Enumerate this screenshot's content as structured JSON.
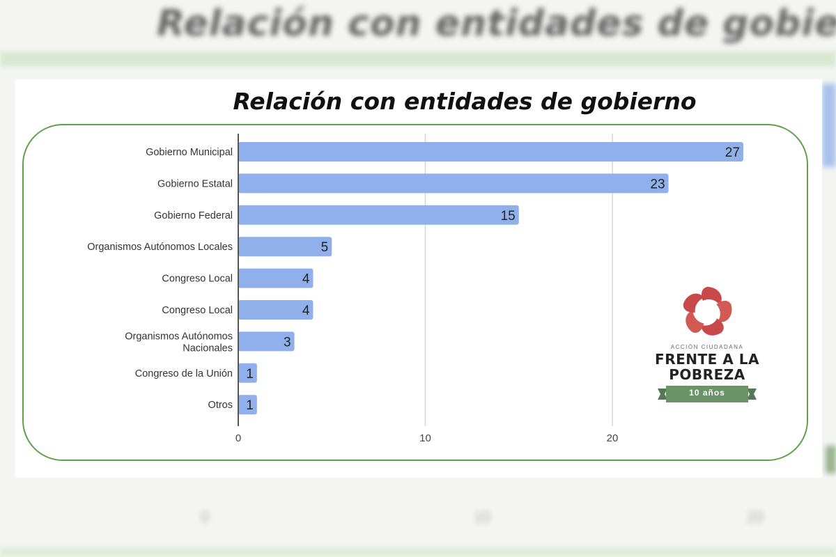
{
  "chart_data": {
    "type": "bar",
    "orientation": "horizontal",
    "title": "Relación con entidades de gobierno",
    "categories": [
      "Gobierno Municipal",
      "Gobierno Estatal",
      "Gobierno Federal",
      "Organismos Autónomos Locales",
      "Congreso Local",
      "Congreso Local",
      "Organismos Autónomos Nacionales",
      "Congreso de la Unión",
      "Otros"
    ],
    "values": [
      27,
      23,
      15,
      5,
      4,
      4,
      3,
      1,
      1
    ],
    "data_labels": [
      "27",
      "23",
      "15",
      "5",
      "4",
      "4",
      "3",
      "1",
      "1"
    ],
    "xlim": [
      0,
      30
    ],
    "xticks": [
      0,
      10,
      20
    ],
    "xtick_labels": [
      "0",
      "10",
      "20"
    ],
    "xlabel": "",
    "ylabel": "",
    "grid": true,
    "bar_color": "#8fb0ea"
  },
  "background": {
    "title": "Relación con entidades de gobierno",
    "ticks": [
      "0",
      "10",
      "20"
    ]
  },
  "logo": {
    "small_text": "ACCIÓN CIUDADANA",
    "line1": "FRENTE A LA",
    "line2": "POBREZA",
    "ribbon": "10 años",
    "icon": "swirl-flower-icon"
  },
  "colors": {
    "frame": "#5fa04a",
    "bar": "#8fb0ea",
    "logo_red": "#c9484a",
    "logo_green": "#6a9368"
  }
}
